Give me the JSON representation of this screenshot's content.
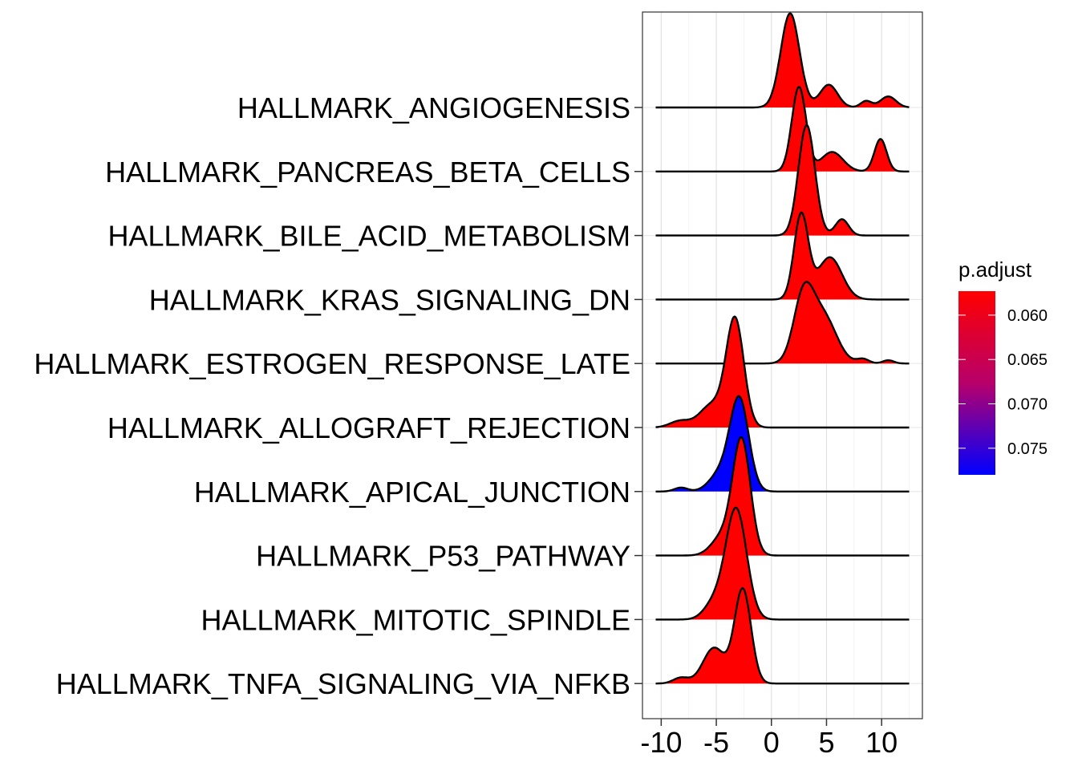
{
  "chart_data": {
    "type": "ridgeline",
    "title": "",
    "xlabel": "",
    "ylabel": "",
    "xlim": [
      -11.7,
      13.7
    ],
    "xticks": [
      -10,
      -5,
      0,
      5,
      10
    ],
    "xtick_labels": [
      "-10",
      "-5",
      "0",
      "5",
      "10"
    ],
    "grid": true,
    "legend": {
      "title": "p.adjust",
      "placement": "right",
      "ticks": [
        0.06,
        0.065,
        0.07,
        0.075
      ],
      "tick_labels": [
        "0.060",
        "0.065",
        "0.070",
        "0.075"
      ],
      "range": [
        0.0573,
        0.078
      ],
      "low_color": "#ff0000",
      "high_color": "#0000ff"
    },
    "series": [
      {
        "name": "HALLMARK_ANGIOGENESIS",
        "p_adjust": 0.0573,
        "x_range": [
          -10.5,
          12.5
        ],
        "peaks": [
          {
            "mu": 1.7,
            "sigma": 0.85,
            "h": 1.45
          },
          {
            "mu": 5.2,
            "sigma": 0.8,
            "h": 0.35
          },
          {
            "mu": 8.6,
            "sigma": 0.5,
            "h": 0.1
          },
          {
            "mu": 10.6,
            "sigma": 0.7,
            "h": 0.17
          }
        ]
      },
      {
        "name": "HALLMARK_PANCREAS_BETA_CELLS",
        "p_adjust": 0.0573,
        "x_range": [
          -10.5,
          12.5
        ],
        "peaks": [
          {
            "mu": 2.5,
            "sigma": 0.65,
            "h": 1.3
          },
          {
            "mu": 5.5,
            "sigma": 1.0,
            "h": 0.3
          },
          {
            "mu": 9.9,
            "sigma": 0.55,
            "h": 0.5
          }
        ]
      },
      {
        "name": "HALLMARK_BILE_ACID_METABOLISM",
        "p_adjust": 0.0573,
        "x_range": [
          -10.5,
          12.5
        ],
        "peaks": [
          {
            "mu": 3.2,
            "sigma": 0.75,
            "h": 1.7
          },
          {
            "mu": 6.4,
            "sigma": 0.6,
            "h": 0.25
          }
        ]
      },
      {
        "name": "HALLMARK_KRAS_SIGNALING_DN",
        "p_adjust": 0.0573,
        "x_range": [
          -10.5,
          12.5
        ],
        "peaks": [
          {
            "mu": 2.7,
            "sigma": 0.65,
            "h": 1.3
          },
          {
            "mu": 5.3,
            "sigma": 1.1,
            "h": 0.65
          }
        ]
      },
      {
        "name": "HALLMARK_ESTROGEN_RESPONSE_LATE",
        "p_adjust": 0.0573,
        "x_range": [
          -10.5,
          12.5
        ],
        "peaks": [
          {
            "mu": 2.9,
            "sigma": 0.9,
            "h": 0.98
          },
          {
            "mu": 4.7,
            "sigma": 1.2,
            "h": 0.72
          },
          {
            "mu": 8.3,
            "sigma": 0.55,
            "h": 0.07
          },
          {
            "mu": 10.6,
            "sigma": 0.5,
            "h": 0.05
          }
        ]
      },
      {
        "name": "HALLMARK_ALLOGRAFT_REJECTION",
        "p_adjust": 0.0573,
        "x_range": [
          -10.5,
          12.5
        ],
        "peaks": [
          {
            "mu": -3.3,
            "sigma": 0.8,
            "h": 1.65
          },
          {
            "mu": -5.4,
            "sigma": 1.1,
            "h": 0.35
          },
          {
            "mu": -8.3,
            "sigma": 0.9,
            "h": 0.1
          }
        ]
      },
      {
        "name": "HALLMARK_APICAL_JUNCTION",
        "p_adjust": 0.078,
        "x_range": [
          -10.5,
          12.5
        ],
        "peaks": [
          {
            "mu": -2.9,
            "sigma": 0.85,
            "h": 1.4
          },
          {
            "mu": -4.6,
            "sigma": 1.0,
            "h": 0.28
          },
          {
            "mu": -8.2,
            "sigma": 0.6,
            "h": 0.06
          }
        ]
      },
      {
        "name": "HALLMARK_P53_PATHWAY",
        "p_adjust": 0.0573,
        "x_range": [
          -10.5,
          12.5
        ],
        "peaks": [
          {
            "mu": -2.7,
            "sigma": 0.8,
            "h": 1.75
          },
          {
            "mu": -4.4,
            "sigma": 1.0,
            "h": 0.3
          }
        ]
      },
      {
        "name": "HALLMARK_MITOTIC_SPINDLE",
        "p_adjust": 0.0573,
        "x_range": [
          -10.5,
          12.5
        ],
        "peaks": [
          {
            "mu": -3.2,
            "sigma": 0.95,
            "h": 1.7
          },
          {
            "mu": -5.2,
            "sigma": 0.9,
            "h": 0.25
          }
        ]
      },
      {
        "name": "HALLMARK_TNFA_SIGNALING_VIA_NFKB",
        "p_adjust": 0.0573,
        "x_range": [
          -10.5,
          12.5
        ],
        "peaks": [
          {
            "mu": -2.6,
            "sigma": 0.75,
            "h": 1.45
          },
          {
            "mu": -5.2,
            "sigma": 1.0,
            "h": 0.55
          },
          {
            "mu": -8.2,
            "sigma": 0.7,
            "h": 0.09
          }
        ]
      }
    ]
  }
}
